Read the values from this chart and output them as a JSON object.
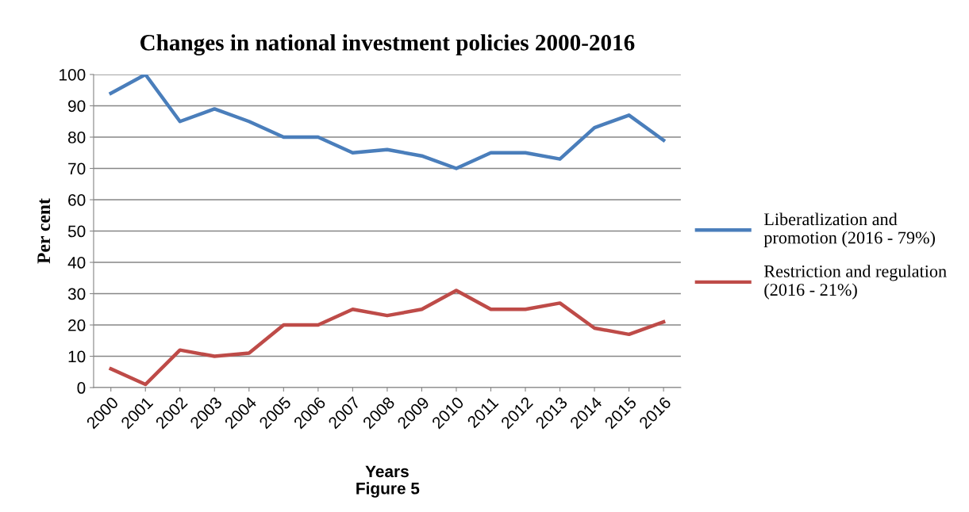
{
  "chart_data": {
    "type": "line",
    "title": "Changes in national investment policies 2000-2016",
    "xlabel": "Years",
    "ylabel": "Per cent",
    "categories": [
      "2000",
      "2001",
      "2002",
      "2003",
      "2004",
      "2005",
      "2006",
      "2007",
      "2008",
      "2009",
      "2010",
      "2011",
      "2012",
      "2013",
      "2014",
      "2015",
      "2016"
    ],
    "series": [
      {
        "name": "Liberatlization and promotion (2016 - 79%)",
        "color": "#4a7ebb",
        "values": [
          94,
          100,
          85,
          89,
          85,
          80,
          80,
          75,
          76,
          74,
          70,
          75,
          75,
          73,
          83,
          87,
          79
        ]
      },
      {
        "name": "Restriction and regulation (2016 - 21%)",
        "color": "#be4b48",
        "values": [
          6,
          1,
          12,
          10,
          11,
          20,
          20,
          25,
          23,
          25,
          31,
          25,
          25,
          27,
          19,
          17,
          21
        ]
      }
    ],
    "ylim": [
      0,
      100
    ],
    "yticks": [
      0,
      10,
      20,
      30,
      40,
      50,
      60,
      70,
      80,
      90,
      100
    ],
    "grid": "y",
    "legend": "right",
    "marker": "none",
    "line_style": "solid",
    "annotations": [
      "Figure 5"
    ]
  }
}
